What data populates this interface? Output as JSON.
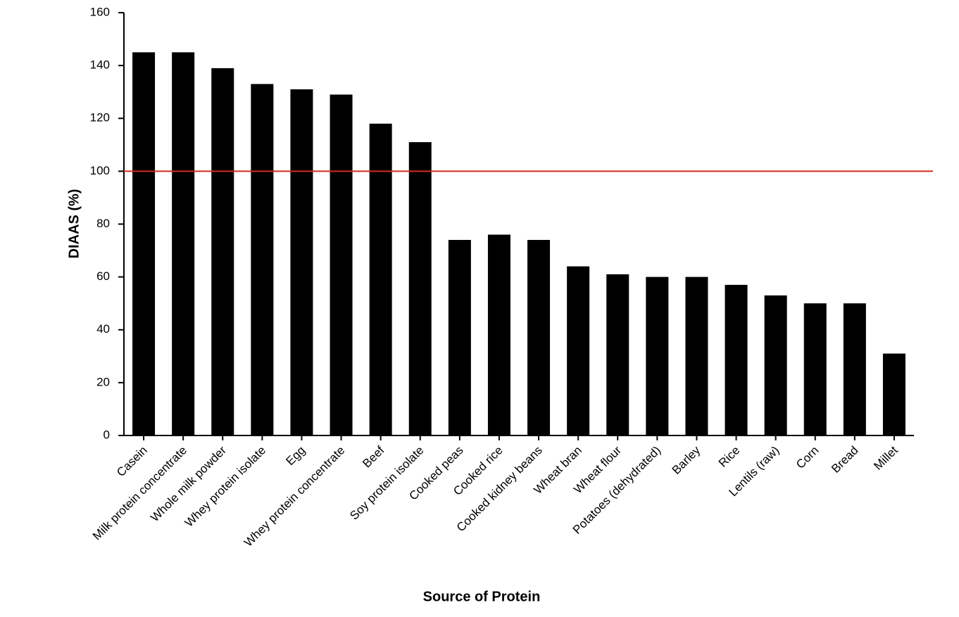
{
  "chart_data": {
    "type": "bar",
    "categories": [
      "Casein",
      "Milk protein concentrate",
      "Whole milk powder",
      "Whey protein isolate",
      "Egg",
      "Whey protein concentrate",
      "Beef",
      "Soy protein isolate",
      "Cooked peas",
      "Cooked rice",
      "Cooked kidney beans",
      "Wheat bran",
      "Wheat flour",
      "Potatoes (dehydrated)",
      "Barley",
      "Rice",
      "Lentils (raw)",
      "Corn",
      "Bread",
      "Millet"
    ],
    "values": [
      145,
      145,
      139,
      133,
      131,
      129,
      118,
      111,
      74,
      76,
      74,
      64,
      61,
      60,
      60,
      57,
      53,
      50,
      50,
      31
    ],
    "color": "#000000",
    "ylim": [
      0,
      160
    ],
    "yticks": [
      0,
      20,
      40,
      60,
      80,
      100,
      120,
      140,
      160
    ],
    "y_label": "DIAAS (%)",
    "x_label": "Source of Protein",
    "reference_line": {
      "value": 100,
      "color": "#d42a1e"
    },
    "grid": false
  }
}
